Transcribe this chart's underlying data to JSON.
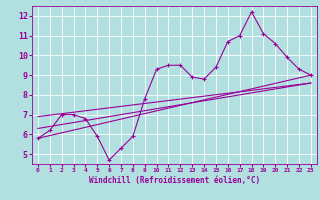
{
  "title": "",
  "xlabel": "Windchill (Refroidissement éolien,°C)",
  "ylabel": "",
  "bg_color": "#b2e0e0",
  "grid_color": "#ffffff",
  "line_color": "#990099",
  "xlim": [
    -0.5,
    23.5
  ],
  "ylim": [
    4.5,
    12.5
  ],
  "yticks": [
    5,
    6,
    7,
    8,
    9,
    10,
    11,
    12
  ],
  "xticks": [
    0,
    1,
    2,
    3,
    4,
    5,
    6,
    7,
    8,
    9,
    10,
    11,
    12,
    13,
    14,
    15,
    16,
    17,
    18,
    19,
    20,
    21,
    22,
    23
  ],
  "line1_x": [
    0,
    1,
    2,
    3,
    4,
    5,
    6,
    7,
    8,
    9,
    10,
    11,
    12,
    13,
    14,
    15,
    16,
    17,
    18,
    19,
    20,
    21,
    22,
    23
  ],
  "line1_y": [
    5.8,
    6.2,
    7.0,
    7.0,
    6.8,
    5.9,
    4.7,
    5.3,
    5.9,
    7.8,
    9.3,
    9.5,
    9.5,
    8.9,
    8.8,
    9.4,
    10.7,
    11.0,
    12.2,
    11.1,
    10.6,
    9.9,
    9.3,
    9.0
  ],
  "line2_x": [
    0,
    23
  ],
  "line2_y": [
    5.8,
    9.0
  ],
  "line3_x": [
    0,
    23
  ],
  "line3_y": [
    6.9,
    8.6
  ],
  "line4_x": [
    0,
    23
  ],
  "line4_y": [
    6.3,
    8.6
  ]
}
